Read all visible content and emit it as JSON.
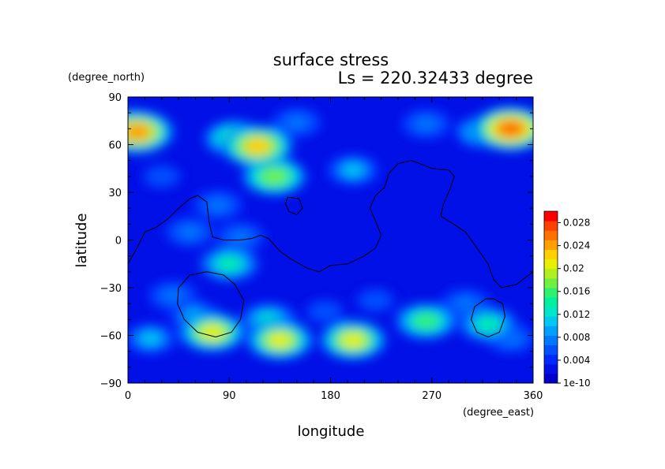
{
  "chart_data": {
    "type": "heatmap",
    "title": "surface stress",
    "subtitle": "Ls = 220.32433 degree",
    "xlabel": "longitude",
    "ylabel": "latitude",
    "x_unit": "(degree_east)",
    "y_unit": "(degree_north)",
    "xlim": [
      0,
      360
    ],
    "ylim": [
      -90,
      90
    ],
    "x_ticks": [
      "0",
      "90",
      "180",
      "270",
      "360"
    ],
    "y_ticks": [
      "90",
      "60",
      "30",
      "0",
      "−30",
      "−60",
      "−90"
    ],
    "colorbar": {
      "min": 0,
      "max": 0.03,
      "labels": [
        "1e-10",
        "0.004",
        "0.008",
        "0.012",
        "0.016",
        "0.02",
        "0.024",
        "0.028"
      ],
      "label_values": [
        0,
        0.004,
        0.008,
        0.012,
        0.016,
        0.02,
        0.024,
        0.028
      ],
      "colors": [
        "#0000c8",
        "#0010e6",
        "#0028ff",
        "#0050ff",
        "#0078ff",
        "#00a0ff",
        "#00c8f0",
        "#00e6c8",
        "#00f0a0",
        "#30f070",
        "#70f040",
        "#b0f020",
        "#e6f000",
        "#ffd000",
        "#ffa000",
        "#ff7000",
        "#ff4000",
        "#ff0000"
      ]
    },
    "background_value": 0.002,
    "stress_blobs": [
      {
        "lon": 8,
        "lat": 68,
        "value": 0.024
      },
      {
        "lon": 3,
        "lat": 72,
        "value": 0.012
      },
      {
        "lon": 95,
        "lat": 64,
        "value": 0.016
      },
      {
        "lon": 115,
        "lat": 59,
        "value": 0.022
      },
      {
        "lon": 130,
        "lat": 40,
        "value": 0.018
      },
      {
        "lon": 150,
        "lat": 74,
        "value": 0.008
      },
      {
        "lon": 200,
        "lat": 44,
        "value": 0.01
      },
      {
        "lon": 265,
        "lat": 73,
        "value": 0.008
      },
      {
        "lon": 340,
        "lat": 70,
        "value": 0.026
      },
      {
        "lon": 315,
        "lat": 68,
        "value": 0.012
      },
      {
        "lon": 55,
        "lat": 5,
        "value": 0.008
      },
      {
        "lon": 80,
        "lat": 22,
        "value": 0.008
      },
      {
        "lon": 90,
        "lat": -15,
        "value": 0.014
      },
      {
        "lon": 100,
        "lat": 2,
        "value": 0.008
      },
      {
        "lon": 40,
        "lat": -35,
        "value": 0.008
      },
      {
        "lon": 60,
        "lat": -48,
        "value": 0.01
      },
      {
        "lon": 75,
        "lat": -58,
        "value": 0.02
      },
      {
        "lon": 125,
        "lat": -50,
        "value": 0.012
      },
      {
        "lon": 135,
        "lat": -63,
        "value": 0.02
      },
      {
        "lon": 200,
        "lat": -63,
        "value": 0.02
      },
      {
        "lon": 175,
        "lat": -45,
        "value": 0.006
      },
      {
        "lon": 265,
        "lat": -51,
        "value": 0.016
      },
      {
        "lon": 320,
        "lat": -53,
        "value": 0.014
      },
      {
        "lon": 300,
        "lat": -40,
        "value": 0.008
      },
      {
        "lon": 20,
        "lat": -62,
        "value": 0.01
      },
      {
        "lon": 340,
        "lat": -62,
        "value": 0.008
      },
      {
        "lon": 220,
        "lat": -38,
        "value": 0.006
      },
      {
        "lon": 30,
        "lat": 40,
        "value": 0.006
      }
    ],
    "contours": [
      {
        "name": "continent-outline",
        "points": [
          [
            0,
            -15
          ],
          [
            8,
            -5
          ],
          [
            15,
            5
          ],
          [
            25,
            8
          ],
          [
            35,
            13
          ],
          [
            45,
            20
          ],
          [
            55,
            26
          ],
          [
            62,
            28
          ],
          [
            70,
            24
          ],
          [
            72,
            12
          ],
          [
            75,
            2
          ],
          [
            85,
            0
          ],
          [
            100,
            0
          ],
          [
            110,
            1
          ],
          [
            118,
            3
          ],
          [
            125,
            1
          ],
          [
            135,
            -7
          ],
          [
            145,
            -12
          ],
          [
            160,
            -18
          ],
          [
            170,
            -20
          ],
          [
            180,
            -16
          ],
          [
            195,
            -15
          ],
          [
            210,
            -10
          ],
          [
            220,
            -5
          ],
          [
            225,
            3
          ],
          [
            220,
            12
          ],
          [
            215,
            20
          ],
          [
            220,
            28
          ],
          [
            228,
            33
          ],
          [
            232,
            42
          ],
          [
            240,
            48
          ],
          [
            252,
            50
          ],
          [
            263,
            47
          ],
          [
            270,
            45
          ],
          [
            285,
            44
          ],
          [
            290,
            40
          ],
          [
            285,
            30
          ],
          [
            280,
            22
          ],
          [
            278,
            15
          ],
          [
            285,
            12
          ],
          [
            300,
            5
          ],
          [
            310,
            -5
          ],
          [
            320,
            -15
          ],
          [
            325,
            -25
          ],
          [
            332,
            -30
          ],
          [
            345,
            -28
          ],
          [
            360,
            -20
          ]
        ]
      },
      {
        "name": "basin-west",
        "points": [
          [
            70,
            -20
          ],
          [
            85,
            -22
          ],
          [
            95,
            -28
          ],
          [
            103,
            -38
          ],
          [
            100,
            -50
          ],
          [
            92,
            -58
          ],
          [
            78,
            -61
          ],
          [
            62,
            -58
          ],
          [
            50,
            -50
          ],
          [
            44,
            -40
          ],
          [
            45,
            -30
          ],
          [
            55,
            -22
          ],
          [
            70,
            -20
          ]
        ]
      },
      {
        "name": "basin-east",
        "points": [
          [
            325,
            -37
          ],
          [
            333,
            -40
          ],
          [
            335,
            -48
          ],
          [
            330,
            -58
          ],
          [
            320,
            -61
          ],
          [
            310,
            -58
          ],
          [
            305,
            -50
          ],
          [
            308,
            -42
          ],
          [
            318,
            -37
          ],
          [
            325,
            -37
          ]
        ]
      },
      {
        "name": "island",
        "points": [
          [
            142,
            27
          ],
          [
            152,
            26
          ],
          [
            155,
            20
          ],
          [
            150,
            16
          ],
          [
            143,
            18
          ],
          [
            140,
            23
          ],
          [
            142,
            27
          ]
        ]
      }
    ]
  }
}
